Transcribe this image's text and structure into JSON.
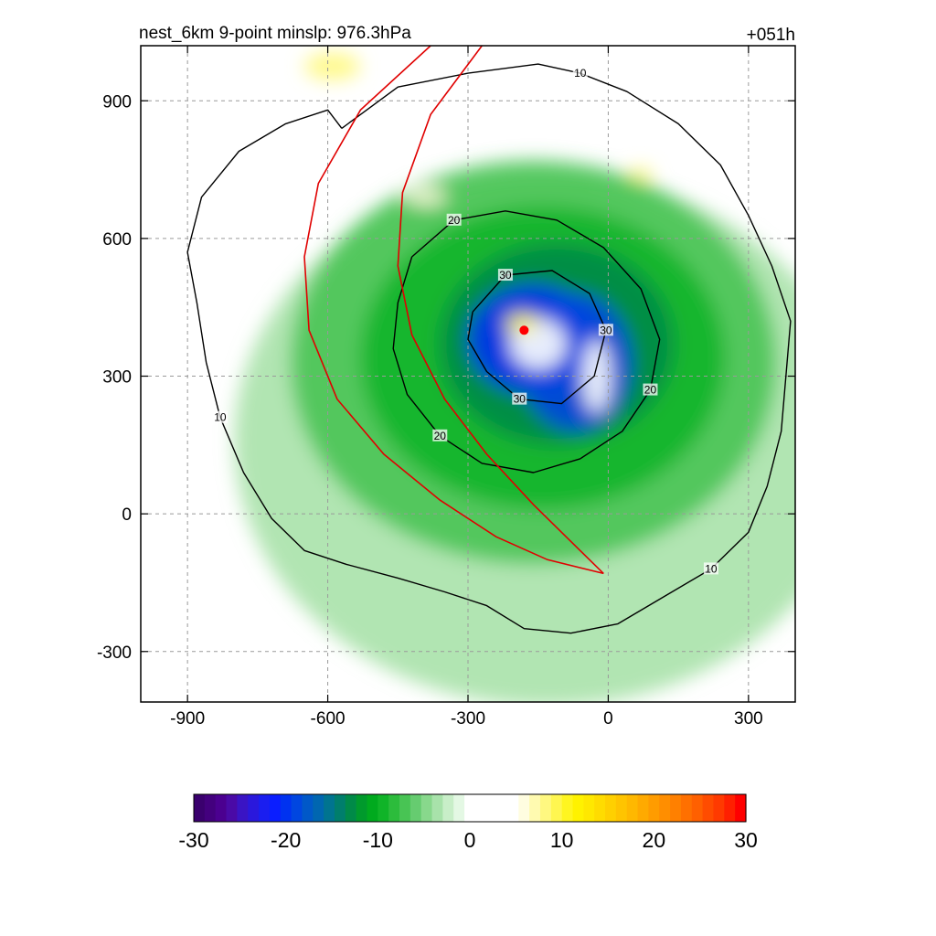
{
  "chart_data": {
    "type": "heatmap",
    "title": "nest_6km  9-point minslp: 976.3hPa",
    "forecast_hour": "+051h",
    "xlabel": "",
    "ylabel": "",
    "xlim": [
      -1000,
      400
    ],
    "ylim": [
      -410,
      1020
    ],
    "x_ticks": [
      -900,
      -600,
      -300,
      0,
      300
    ],
    "x_tick_labels": [
      "-900",
      "-600",
      "-300",
      "0",
      "300"
    ],
    "y_ticks": [
      -300,
      0,
      300,
      600,
      900
    ],
    "y_tick_labels": [
      "-300",
      "0",
      "300",
      "600",
      "900"
    ],
    "grid": true,
    "storm_center": {
      "x": -180,
      "y": 400,
      "color": "#ff0000"
    },
    "fill_blobs": [
      {
        "x": -130,
        "y": 160,
        "rx": 670,
        "ry": 580,
        "value": -4
      },
      {
        "x": -160,
        "y": 330,
        "rx": 520,
        "ry": 440,
        "value": -7
      },
      {
        "x": -140,
        "y": 340,
        "rx": 390,
        "ry": 330,
        "value": -10
      },
      {
        "x": -110,
        "y": 370,
        "rx": 250,
        "ry": 220,
        "value": -13
      },
      {
        "x": -160,
        "y": 380,
        "rx": 140,
        "ry": 120,
        "value": -20
      },
      {
        "x": -70,
        "y": 330,
        "rx": 120,
        "ry": 150,
        "value": -19
      },
      {
        "x": -25,
        "y": 300,
        "rx": 30,
        "ry": 80,
        "value": 0
      },
      {
        "x": -150,
        "y": 370,
        "rx": 60,
        "ry": 55,
        "value": 0
      },
      {
        "x": -185,
        "y": 415,
        "rx": 35,
        "ry": 22,
        "value": 9
      },
      {
        "x": -590,
        "y": 975,
        "rx": 60,
        "ry": 30,
        "value": 8
      },
      {
        "x": 70,
        "y": 740,
        "rx": 25,
        "ry": 15,
        "value": 8
      },
      {
        "x": -390,
        "y": 690,
        "rx": 45,
        "ry": 18,
        "value": 6
      }
    ],
    "contours": [
      {
        "level": 10,
        "label": "10",
        "points": [
          [
            -570,
            840
          ],
          [
            -450,
            930
          ],
          [
            -300,
            960
          ],
          [
            -150,
            980
          ],
          [
            -60,
            960
          ],
          [
            40,
            920
          ],
          [
            150,
            850
          ],
          [
            240,
            760
          ],
          [
            300,
            650
          ],
          [
            350,
            540
          ],
          [
            390,
            420
          ],
          [
            380,
            300
          ],
          [
            370,
            180
          ],
          [
            340,
            60
          ],
          [
            300,
            -40
          ],
          [
            220,
            -120
          ],
          [
            120,
            -180
          ],
          [
            20,
            -240
          ],
          [
            -80,
            -260
          ],
          [
            -180,
            -250
          ],
          [
            -260,
            -200
          ],
          [
            -350,
            -170
          ],
          [
            -450,
            -140
          ],
          [
            -560,
            -110
          ],
          [
            -650,
            -80
          ],
          [
            -720,
            -10
          ],
          [
            -780,
            90
          ],
          [
            -830,
            210
          ],
          [
            -860,
            330
          ],
          [
            -880,
            460
          ],
          [
            -900,
            570
          ],
          [
            -870,
            690
          ],
          [
            -790,
            790
          ],
          [
            -690,
            850
          ],
          [
            -600,
            880
          ],
          [
            -570,
            840
          ]
        ]
      },
      {
        "level": 20,
        "label": "20",
        "points": [
          [
            -420,
            560
          ],
          [
            -330,
            640
          ],
          [
            -220,
            660
          ],
          [
            -110,
            640
          ],
          [
            -10,
            580
          ],
          [
            70,
            490
          ],
          [
            110,
            380
          ],
          [
            90,
            270
          ],
          [
            30,
            180
          ],
          [
            -60,
            120
          ],
          [
            -160,
            90
          ],
          [
            -270,
            110
          ],
          [
            -360,
            170
          ],
          [
            -430,
            260
          ],
          [
            -460,
            360
          ],
          [
            -450,
            460
          ],
          [
            -420,
            560
          ]
        ]
      },
      {
        "level": 30,
        "label": "30",
        "points": [
          [
            -290,
            440
          ],
          [
            -220,
            520
          ],
          [
            -120,
            530
          ],
          [
            -40,
            480
          ],
          [
            -5,
            400
          ],
          [
            -30,
            300
          ],
          [
            -100,
            240
          ],
          [
            -190,
            250
          ],
          [
            -260,
            310
          ],
          [
            -300,
            380
          ],
          [
            -290,
            440
          ]
        ]
      }
    ],
    "tracks": [
      {
        "color": "#e00000",
        "points": [
          [
            -380,
            1020
          ],
          [
            -530,
            880
          ],
          [
            -620,
            720
          ],
          [
            -650,
            560
          ],
          [
            -640,
            400
          ],
          [
            -580,
            250
          ],
          [
            -480,
            130
          ],
          [
            -360,
            30
          ],
          [
            -240,
            -50
          ],
          [
            -130,
            -100
          ],
          [
            -10,
            -130
          ]
        ]
      },
      {
        "color": "#e00000",
        "points": [
          [
            -270,
            1020
          ],
          [
            -380,
            870
          ],
          [
            -440,
            700
          ],
          [
            -450,
            540
          ],
          [
            -420,
            390
          ],
          [
            -350,
            250
          ],
          [
            -260,
            130
          ],
          [
            -160,
            20
          ],
          [
            -80,
            -60
          ],
          [
            -10,
            -130
          ]
        ]
      }
    ],
    "colorbar": {
      "min": -30,
      "max": 30,
      "tick_values": [
        -30,
        -20,
        -10,
        0,
        10,
        20,
        30
      ],
      "tick_labels": [
        "-30",
        "-20",
        "-10",
        "0",
        "10",
        "20",
        "30"
      ],
      "colors": [
        "#3a006e",
        "#43007e",
        "#4b0090",
        "#4a0aa6",
        "#3a14c4",
        "#2a18dc",
        "#1a1ef0",
        "#0a1eff",
        "#0032f0",
        "#0046e0",
        "#0058c8",
        "#0066b0",
        "#007490",
        "#007e6c",
        "#008a48",
        "#009a2c",
        "#00aa1e",
        "#10b428",
        "#2cbc3c",
        "#48c454",
        "#66cc70",
        "#88d88c",
        "#a8e2aa",
        "#c8eec8",
        "#e4f8e4",
        "#ffffff",
        "#ffffff",
        "#ffffff",
        "#ffffff",
        "#ffffff",
        "#fffde0",
        "#fffab0",
        "#fff880",
        "#fff650",
        "#fff520",
        "#fff200",
        "#ffe800",
        "#ffdc00",
        "#ffd000",
        "#ffc400",
        "#ffb800",
        "#ffaa00",
        "#ff9c00",
        "#ff8e00",
        "#ff8000",
        "#ff7000",
        "#ff6000",
        "#ff4c00",
        "#ff3a00",
        "#ff2000",
        "#ff0000"
      ]
    }
  }
}
